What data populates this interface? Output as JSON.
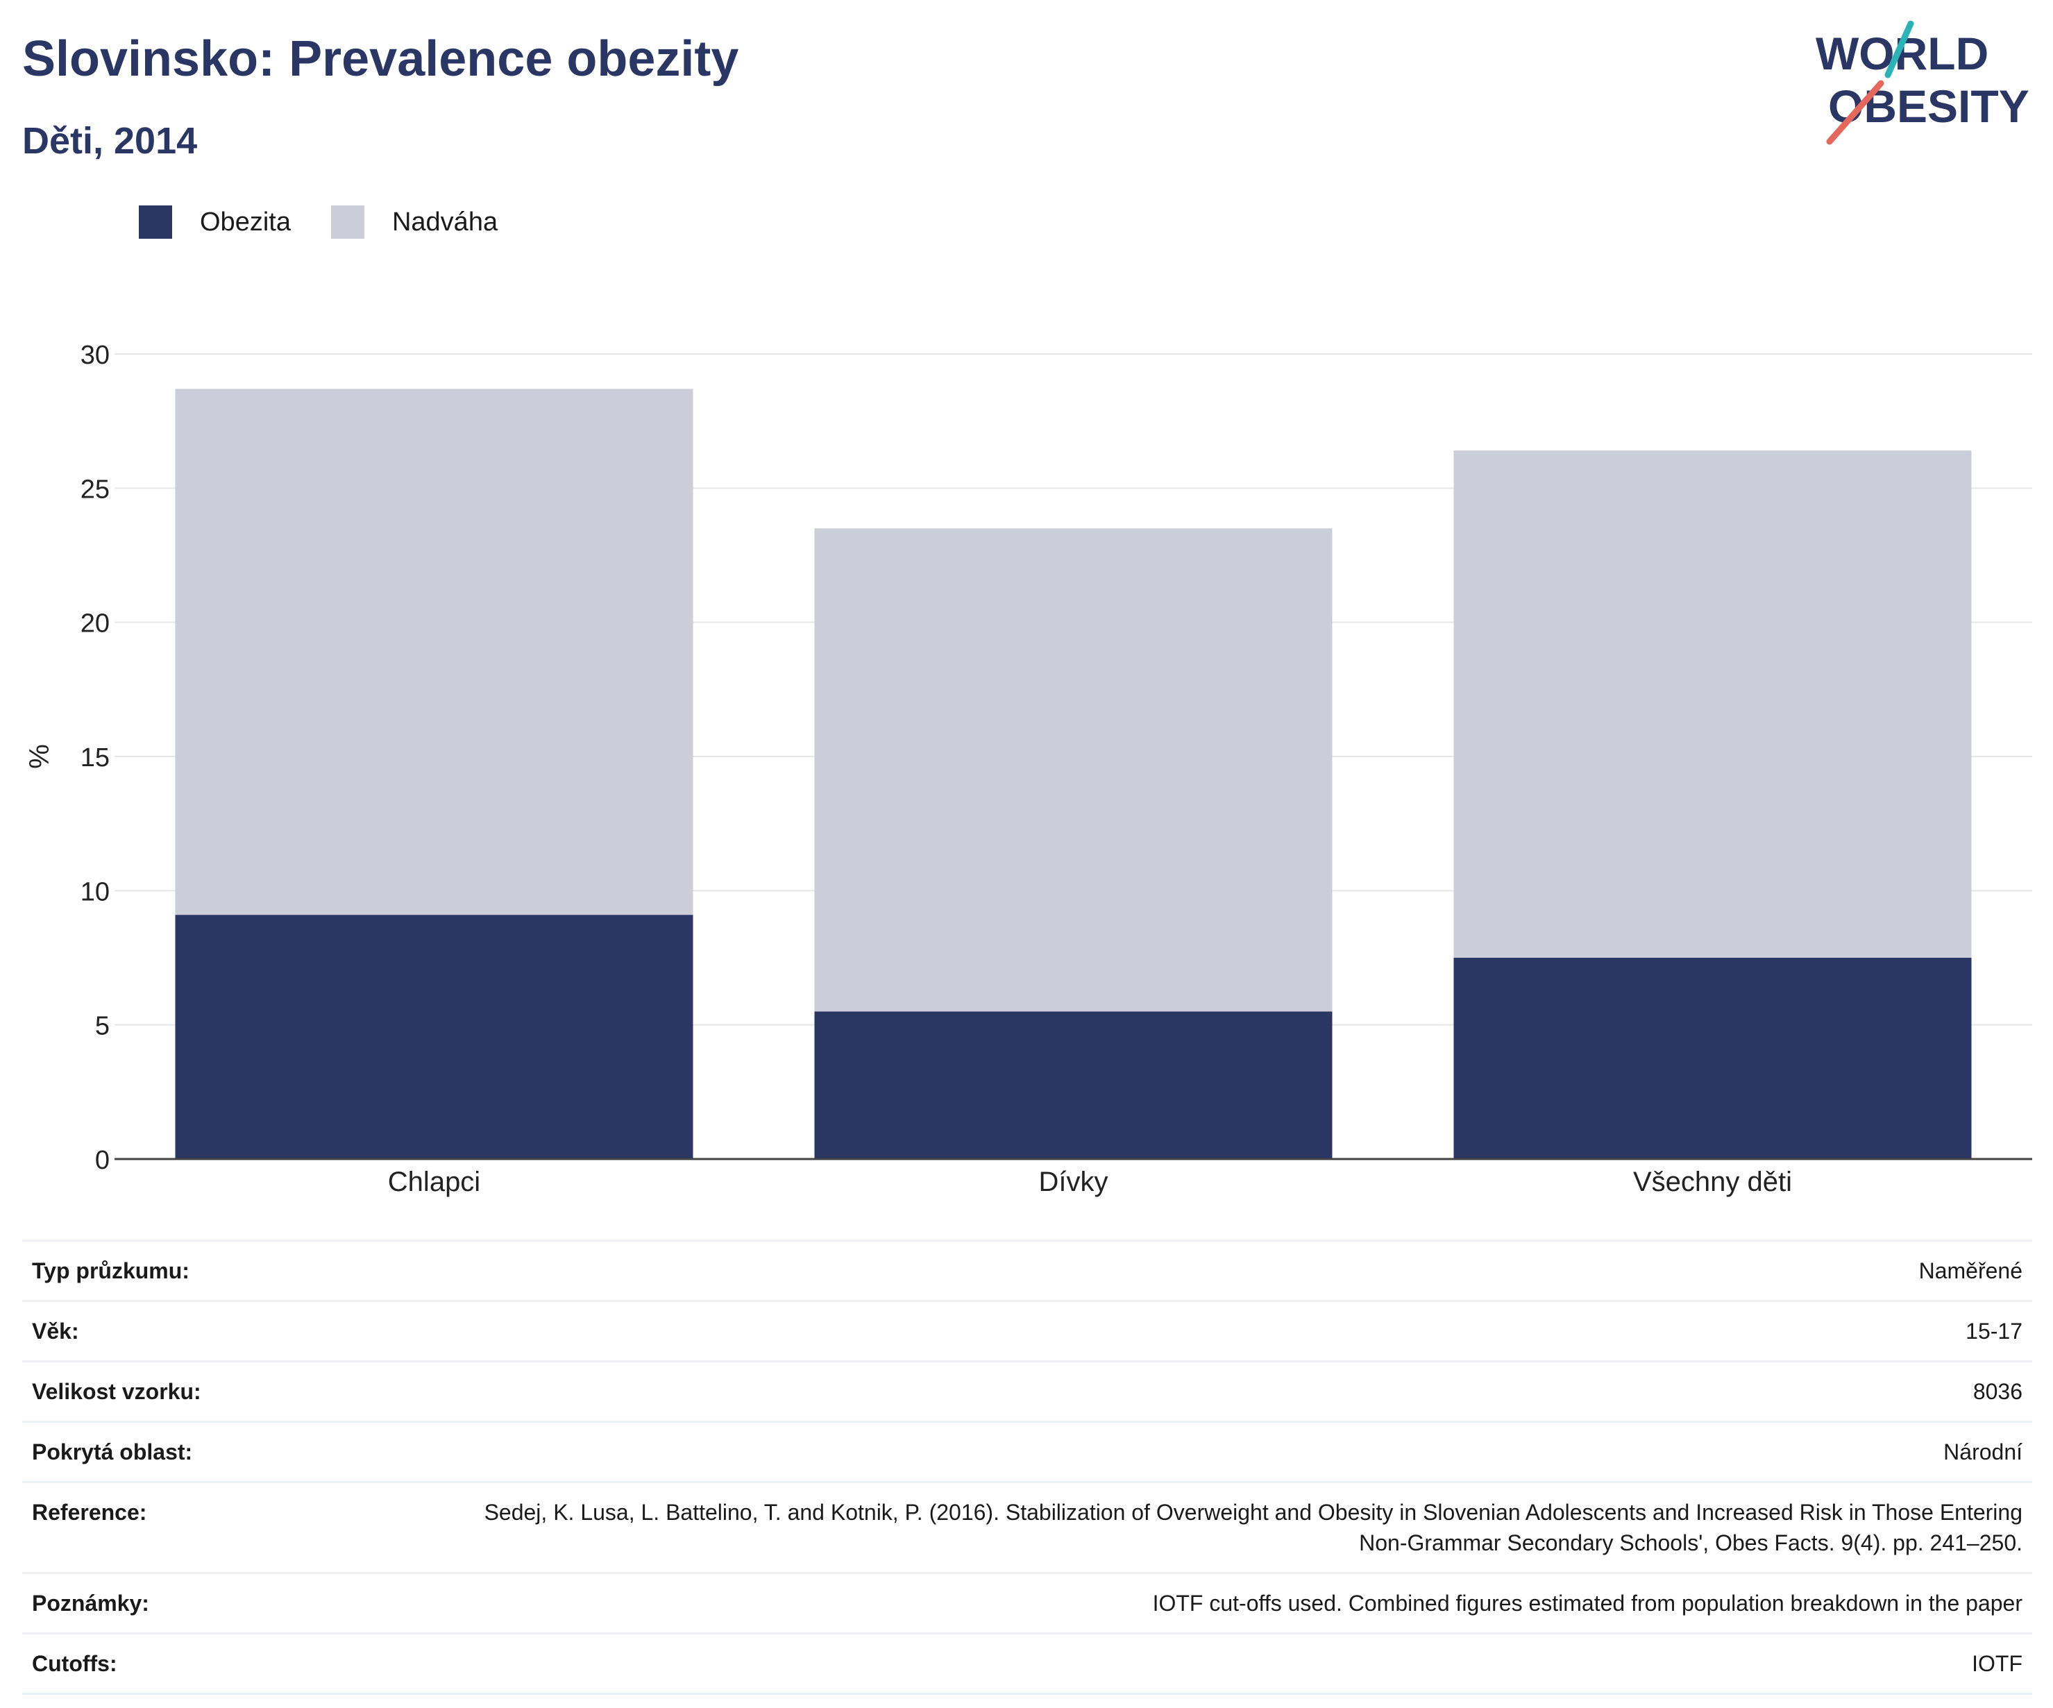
{
  "header": {
    "title": "Slovinsko: Prevalence obezity",
    "subtitle": "Děti, 2014",
    "logo_line1": "WORLD",
    "logo_line2": "OBESITY"
  },
  "legend": [
    {
      "label": "Obezita",
      "color": "#2a3764"
    },
    {
      "label": "Nadváha",
      "color": "#cbcdd8"
    }
  ],
  "chart_data": {
    "type": "bar",
    "stacked": true,
    "categories": [
      "Chlapci",
      "Dívky",
      "Všechny děti"
    ],
    "series": [
      {
        "name": "Obezita",
        "color": "#2a3764",
        "values": [
          9.1,
          5.5,
          7.5
        ]
      },
      {
        "name": "Nadváha",
        "color": "#cbcdd8",
        "values": [
          19.6,
          18.0,
          18.9
        ]
      }
    ],
    "ylabel": "%",
    "ylim": [
      0,
      30
    ],
    "yticks": [
      0,
      5,
      10,
      15,
      20,
      25,
      30
    ],
    "grid": true,
    "legend_position": "top-left"
  },
  "info": [
    {
      "label": "Typ průzkumu:",
      "value": "Naměřené"
    },
    {
      "label": "Věk:",
      "value": "15-17"
    },
    {
      "label": "Velikost vzorku:",
      "value": "8036"
    },
    {
      "label": "Pokrytá oblast:",
      "value": "Národní"
    },
    {
      "label": "Reference:",
      "value": "Sedej, K. Lusa, L. Battelino, T. and Kotnik, P. (2016). Stabilization of Overweight and Obesity in Slovenian Adolescents and Increased Risk in Those Entering Non-Grammar Secondary Schools', Obes Facts. 9(4). pp. 241–250."
    },
    {
      "label": "Poznámky:",
      "value": "IOTF cut-offs used. Combined figures estimated from population breakdown in the paper"
    },
    {
      "label": "Cutoffs:",
      "value": "IOTF"
    }
  ]
}
